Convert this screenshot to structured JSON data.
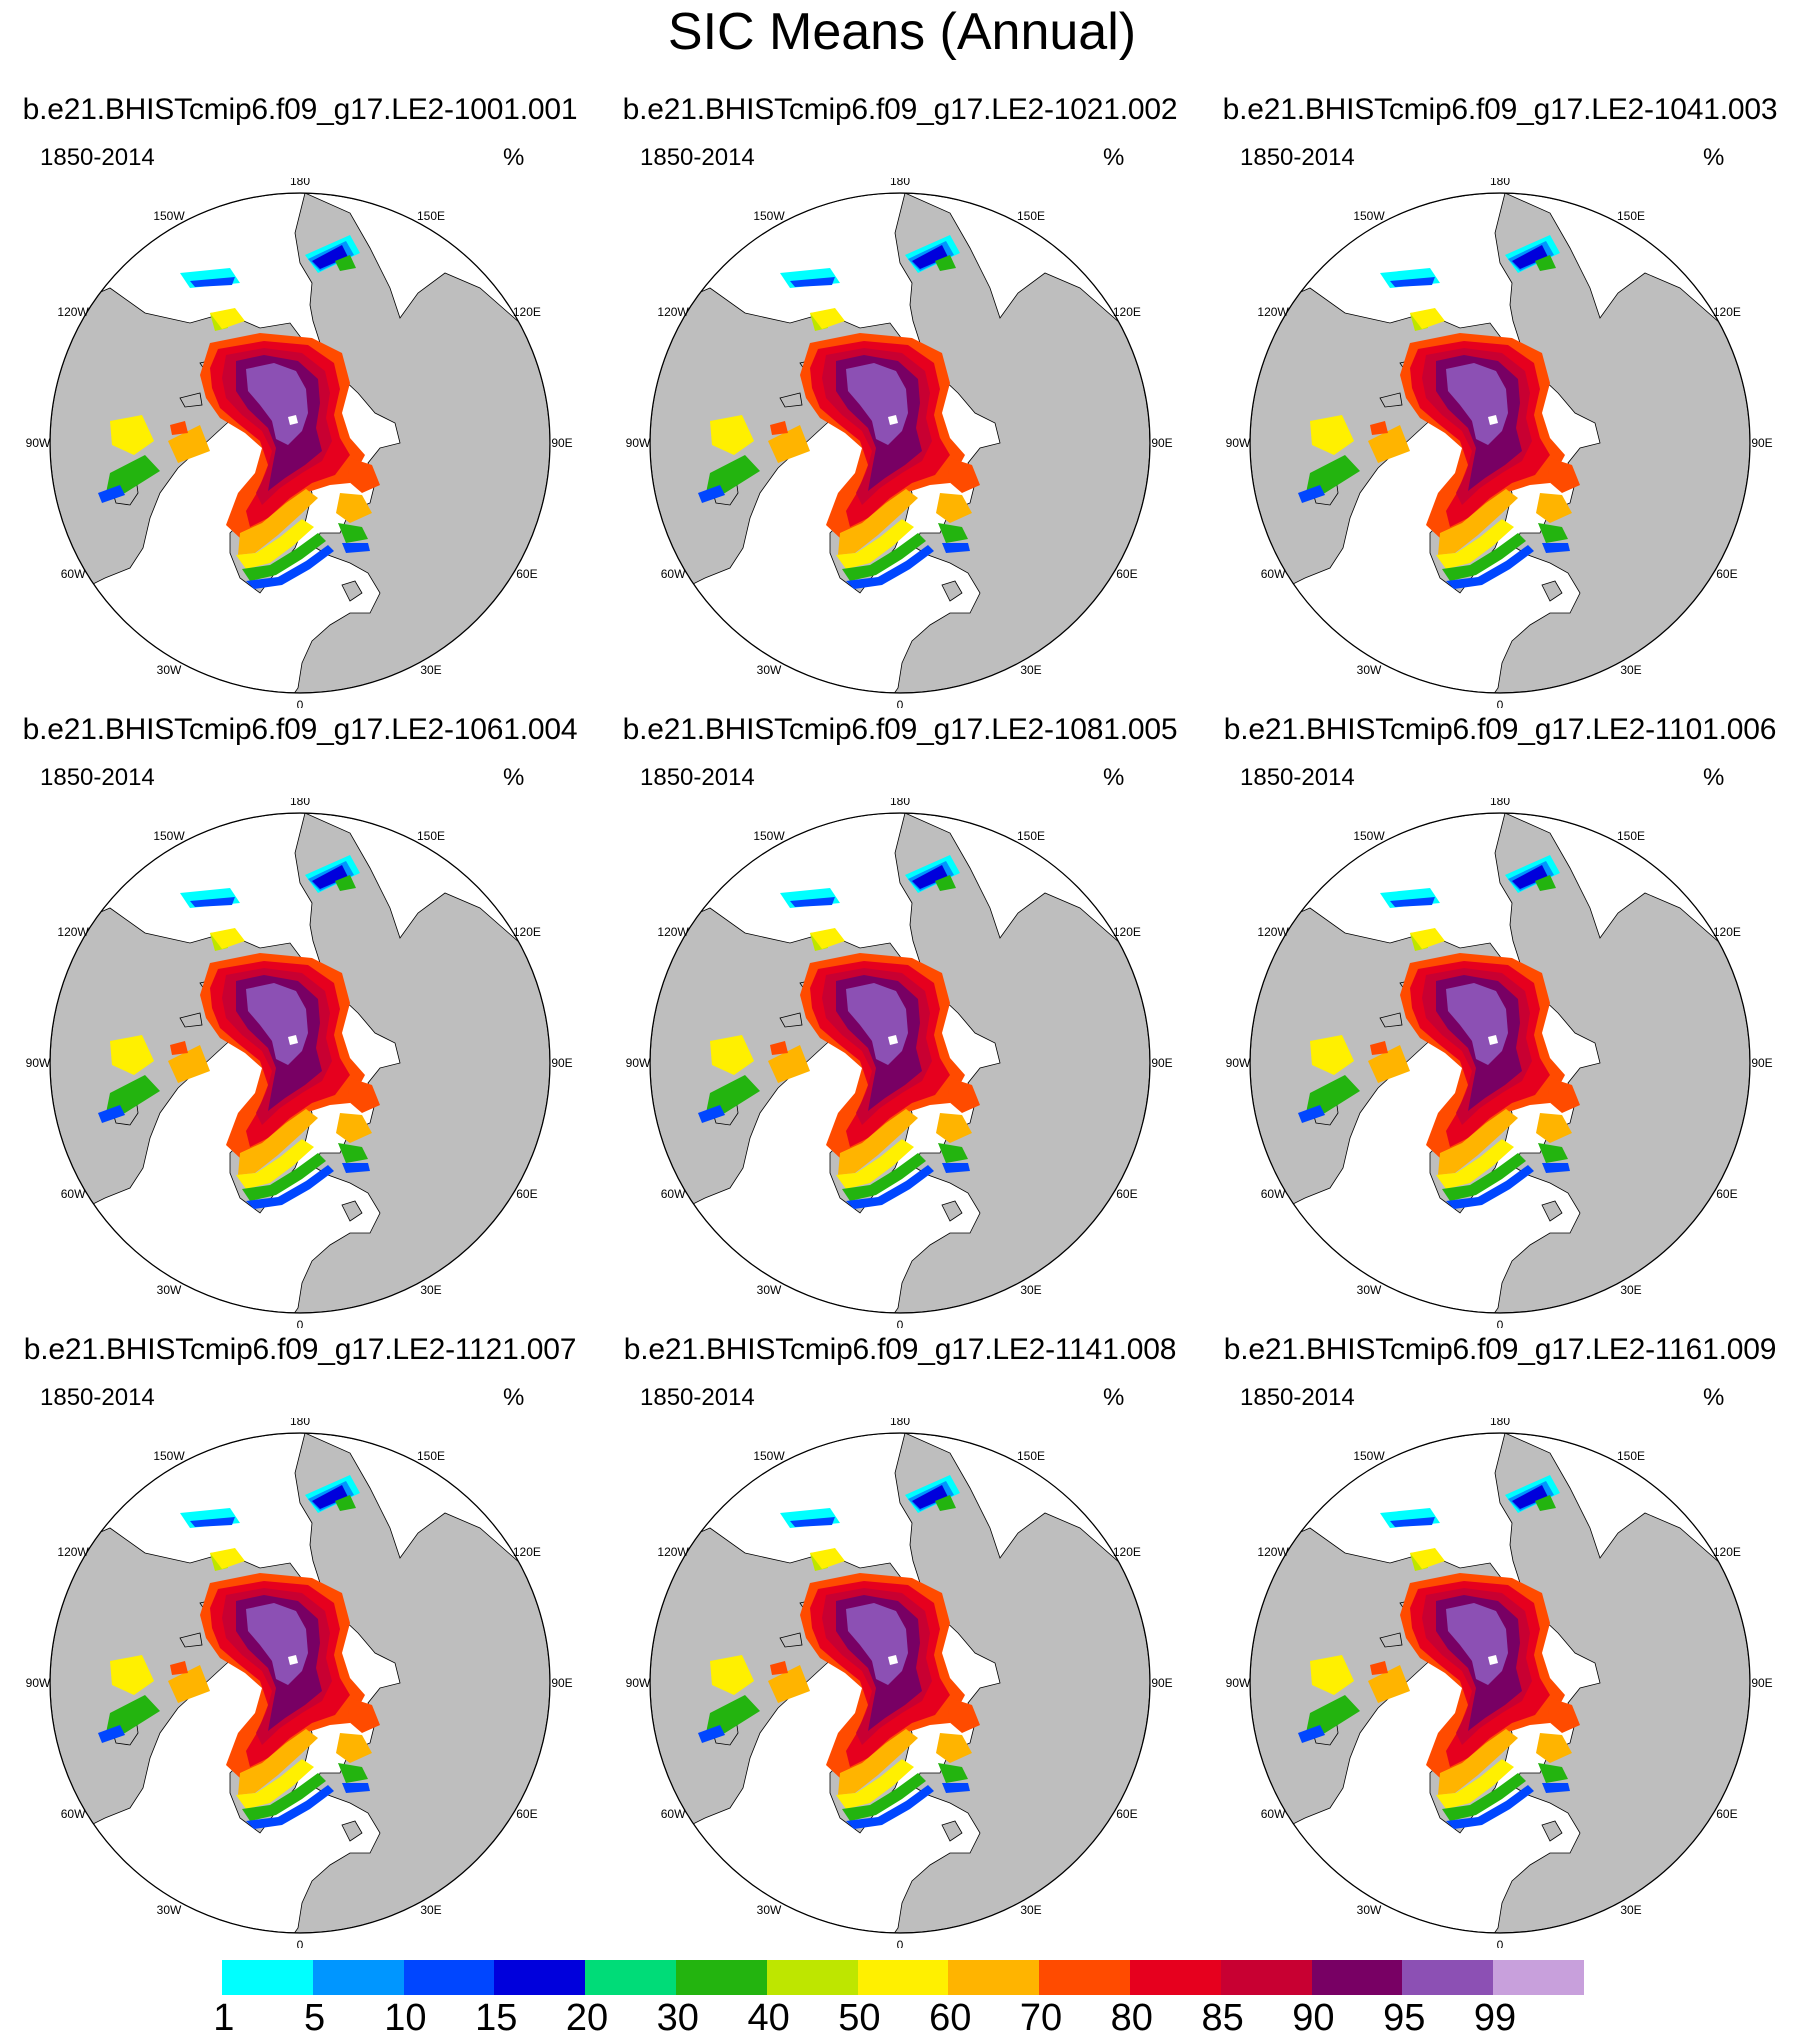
{
  "title": "SIC Means (Annual)",
  "period": "1850-2014",
  "units": "%",
  "panels": [
    {
      "case": "b.e21.BHISTcmip6.f09_g17.LE2-1001.001"
    },
    {
      "case": "b.e21.BHISTcmip6.f09_g17.LE2-1021.002"
    },
    {
      "case": "b.e21.BHISTcmip6.f09_g17.LE2-1041.003"
    },
    {
      "case": "b.e21.BHISTcmip6.f09_g17.LE2-1061.004"
    },
    {
      "case": "b.e21.BHISTcmip6.f09_g17.LE2-1081.005"
    },
    {
      "case": "b.e21.BHISTcmip6.f09_g17.LE2-1101.006"
    },
    {
      "case": "b.e21.BHISTcmip6.f09_g17.LE2-1121.007"
    },
    {
      "case": "b.e21.BHISTcmip6.f09_g17.LE2-1141.008"
    },
    {
      "case": "b.e21.BHISTcmip6.f09_g17.LE2-1161.009"
    }
  ],
  "longitude_labels": [
    "180",
    "150E",
    "120E",
    "90E",
    "60E",
    "30E",
    "0",
    "30W",
    "60W",
    "90W",
    "120W",
    "150W"
  ],
  "colorbar": {
    "labels": [
      "1",
      "5",
      "10",
      "15",
      "20",
      "30",
      "40",
      "50",
      "60",
      "70",
      "80",
      "85",
      "90",
      "95",
      "99"
    ],
    "colors": [
      "#00FFFF",
      "#0096FF",
      "#0046FF",
      "#0000DC",
      "#00DC78",
      "#23B40F",
      "#BEE600",
      "#FFF000",
      "#FFB400",
      "#FF4B00",
      "#E6001E",
      "#C80032",
      "#780064",
      "#8C50B4",
      "#C8A0DC"
    ]
  },
  "map_colors": {
    "land": "#BEBEBE",
    "ocean": "#FFFFFF"
  }
}
